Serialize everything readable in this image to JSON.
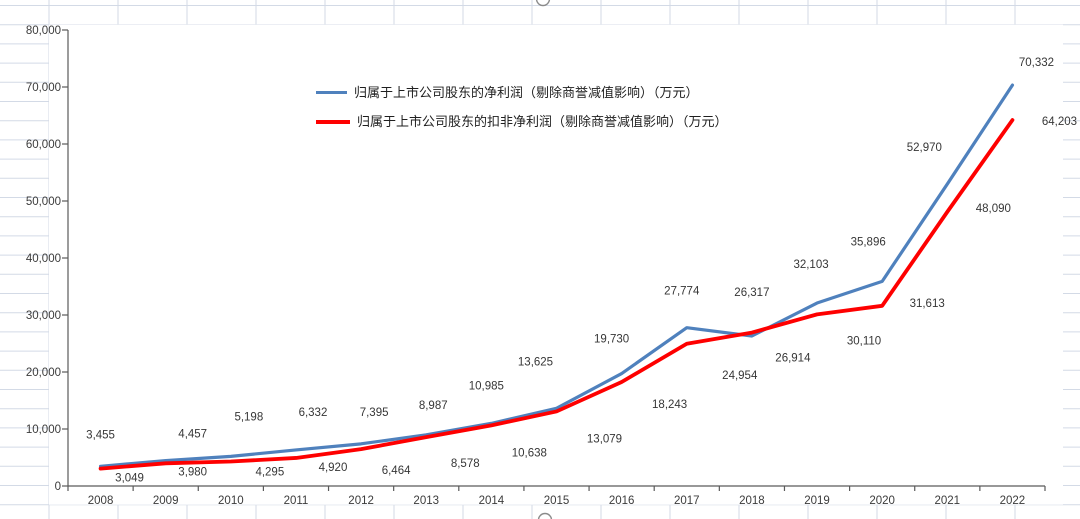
{
  "chart_data": {
    "type": "line",
    "x": [
      "2008",
      "2009",
      "2010",
      "2011",
      "2012",
      "2013",
      "2014",
      "2015",
      "2016",
      "2017",
      "2018",
      "2019",
      "2020",
      "2021",
      "2022"
    ],
    "series": [
      {
        "name": "归属于上市公司股东的净利润（剔除商誉减值影响）（万元）",
        "color": "#4f81bd",
        "values": [
          3455,
          4457,
          5198,
          6332,
          7395,
          8987,
          10985,
          13625,
          19730,
          27774,
          26317,
          32103,
          35896,
          52970,
          70332
        ]
      },
      {
        "name": "归属于上市公司股东的扣非净利润（剔除商誉减值影响）（万元）",
        "color": "#fe0000",
        "values": [
          3049,
          3980,
          4295,
          4920,
          6464,
          8578,
          10638,
          13079,
          18243,
          24954,
          26914,
          30110,
          31613,
          48090,
          64203
        ]
      }
    ],
    "title": "",
    "xlabel": "",
    "ylabel": "",
    "ylim": [
      0,
      80000
    ],
    "ytick_step": 10000,
    "ytick_labels": [
      "0",
      "10,000",
      "20,000",
      "30,000",
      "40,000",
      "50,000",
      "60,000",
      "70,000",
      "80,000"
    ],
    "grid": false,
    "data_labels": true,
    "legend_position": "inside-top-center"
  },
  "worksheet": {
    "gridline_color": "#d3dae6",
    "axis_color": "#5a5a5a",
    "label_color": "#3b3b3b",
    "selection_handle_color": "#8a8a8a"
  }
}
